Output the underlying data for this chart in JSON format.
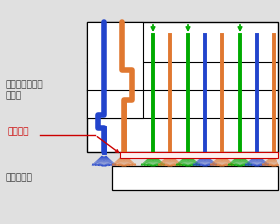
{
  "bg_color": "#e0e0e0",
  "label_shower": "マルチシャワー\nヘッド",
  "label_wafer": "ウェハー",
  "label_susceptor": "サセプター",
  "color_blue": "#2244cc",
  "color_orange": "#e07830",
  "color_green": "#00aa00",
  "color_black": "#000000",
  "color_red": "#cc0000",
  "figw": 2.8,
  "figh": 2.24,
  "dpi": 100
}
